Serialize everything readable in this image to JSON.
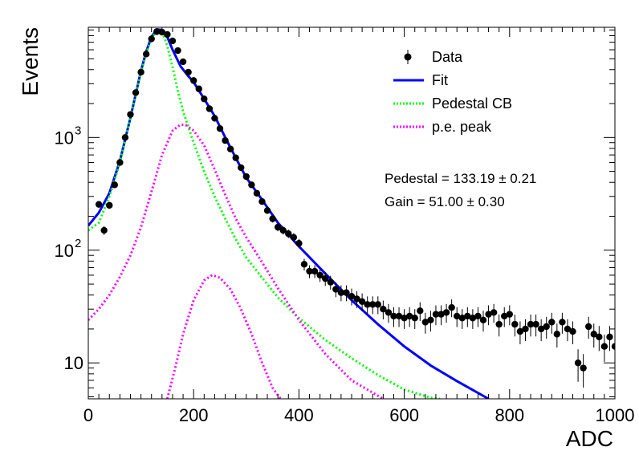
{
  "chart_data": {
    "type": "scatter",
    "xlabel": "ADC",
    "ylabel": "Events",
    "xlim": [
      0,
      1000
    ],
    "ylim": [
      4.8,
      9500
    ],
    "yscale": "log",
    "grid": false,
    "legend_position": "top-right",
    "x_ticks": [
      0,
      200,
      400,
      600,
      800,
      1000
    ],
    "x_tick_labels": [
      "0",
      "200",
      "400",
      "600",
      "800",
      "1000"
    ],
    "y_ticks": [
      10,
      100,
      1000
    ],
    "y_tick_labels": [
      "10",
      "10",
      "10"
    ],
    "y_tick_exponents": [
      "",
      "2",
      "3"
    ],
    "legend": [
      {
        "label": "Data",
        "marker": "point",
        "color": "#000000"
      },
      {
        "label": "Fit",
        "marker": "solid-line",
        "color": "#0000ff"
      },
      {
        "label": "Pedestal CB",
        "marker": "dotted-line",
        "color": "#00ff00"
      },
      {
        "label": "p.e. peak",
        "marker": "dotted-line",
        "color": "#ff00ff"
      }
    ],
    "annotations": [
      "Pedestal = 133.19 ± 0.21",
      "Gain = 51.00 ± 0.30"
    ],
    "series": [
      {
        "name": "Data",
        "style": "points-with-errors",
        "color": "#000000",
        "x": [
          20,
          30,
          40,
          50,
          60,
          70,
          80,
          90,
          100,
          110,
          120,
          130,
          140,
          150,
          160,
          170,
          180,
          190,
          200,
          210,
          220,
          230,
          240,
          250,
          260,
          270,
          280,
          290,
          300,
          310,
          320,
          330,
          340,
          350,
          360,
          370,
          380,
          390,
          400,
          410,
          420,
          430,
          440,
          450,
          460,
          470,
          480,
          490,
          500,
          510,
          520,
          530,
          540,
          550,
          560,
          570,
          580,
          590,
          600,
          610,
          620,
          630,
          640,
          650,
          660,
          670,
          680,
          690,
          700,
          710,
          720,
          730,
          740,
          750,
          760,
          770,
          780,
          790,
          800,
          810,
          820,
          830,
          840,
          850,
          860,
          870,
          880,
          890,
          900,
          910,
          920,
          930,
          940,
          950,
          960,
          970,
          980,
          990,
          1000
        ],
        "y": [
          255,
          150,
          250,
          380,
          600,
          1000,
          1600,
          2500,
          3800,
          5500,
          7500,
          8700,
          8600,
          8200,
          7200,
          5900,
          4700,
          3800,
          3200,
          2700,
          2200,
          1800,
          1480,
          1200,
          940,
          790,
          660,
          540,
          450,
          380,
          320,
          270,
          225,
          190,
          160,
          150,
          140,
          130,
          115,
          75,
          65,
          65,
          60,
          56,
          52,
          45,
          42,
          42,
          39,
          37,
          35,
          33,
          33,
          33,
          30,
          28,
          26,
          26,
          25,
          26,
          25,
          29,
          23,
          24,
          27,
          27,
          28,
          31,
          26,
          25,
          26,
          25,
          26,
          24,
          27,
          28,
          22,
          26,
          27,
          22,
          19,
          20,
          22,
          22,
          20,
          21,
          23,
          18,
          23,
          20,
          19,
          10,
          9,
          21,
          18,
          17,
          14,
          17,
          14
        ],
        "y_err_frac": [
          0.07,
          0.09,
          0.07,
          0.055,
          0.045,
          0.035,
          0.028,
          0.022,
          0.018,
          0.015,
          0.013,
          0.012,
          0.012,
          0.012,
          0.013,
          0.014,
          0.016,
          0.018,
          0.019,
          0.021,
          0.023,
          0.025,
          0.027,
          0.03,
          0.033,
          0.036,
          0.039,
          0.044,
          0.048,
          0.052,
          0.057,
          0.062,
          0.068,
          0.074,
          0.08,
          0.083,
          0.086,
          0.09,
          0.095,
          0.12,
          0.13,
          0.13,
          0.13,
          0.14,
          0.14,
          0.15,
          0.16,
          0.16,
          0.17,
          0.17,
          0.18,
          0.18,
          0.18,
          0.18,
          0.19,
          0.19,
          0.2,
          0.2,
          0.2,
          0.2,
          0.2,
          0.19,
          0.21,
          0.21,
          0.2,
          0.2,
          0.19,
          0.18,
          0.2,
          0.2,
          0.2,
          0.2,
          0.2,
          0.21,
          0.2,
          0.19,
          0.22,
          0.2,
          0.2,
          0.22,
          0.23,
          0.22,
          0.22,
          0.22,
          0.22,
          0.22,
          0.21,
          0.24,
          0.21,
          0.22,
          0.23,
          0.32,
          0.33,
          0.22,
          0.24,
          0.25,
          0.27,
          0.25,
          0.27
        ]
      },
      {
        "name": "Fit",
        "style": "solid",
        "color": "#0000ff",
        "x": [
          0,
          20,
          40,
          60,
          80,
          100,
          110,
          120,
          130,
          140,
          150,
          160,
          175,
          190,
          200,
          220,
          240,
          260,
          280,
          300,
          330,
          360,
          400,
          450,
          500,
          550,
          600,
          650,
          700,
          760
        ],
        "y": [
          165,
          215,
          320,
          620,
          1500,
          3900,
          5800,
          7800,
          9100,
          9000,
          7800,
          6000,
          4300,
          3500,
          3100,
          2200,
          1550,
          1000,
          660,
          440,
          280,
          175,
          108,
          62,
          36,
          22,
          14,
          9.5,
          6.9,
          4.8
        ]
      },
      {
        "name": "Pedestal CB",
        "style": "dotted",
        "color": "#00ff00",
        "x": [
          0,
          20,
          40,
          60,
          80,
          100,
          110,
          120,
          130,
          140,
          150,
          160,
          170,
          180,
          200,
          220,
          240,
          260,
          280,
          300,
          330,
          360,
          400,
          450,
          500,
          550,
          600,
          650,
          668
        ],
        "y": [
          150,
          175,
          300,
          600,
          1500,
          3800,
          5600,
          7500,
          8900,
          8800,
          6500,
          4200,
          2600,
          1700,
          900,
          500,
          300,
          190,
          125,
          86,
          57,
          38,
          25,
          16,
          11,
          7.8,
          5.8,
          4.9,
          4.8
        ]
      },
      {
        "name": "p.e. peak",
        "style": "dotted",
        "color": "#ff00ff",
        "x": [
          0,
          20,
          40,
          60,
          80,
          100,
          120,
          140,
          160,
          175,
          185,
          200,
          220,
          240,
          260,
          280,
          300,
          330,
          360,
          400,
          450,
          500,
          560
        ],
        "y": [
          24,
          30,
          40,
          58,
          90,
          160,
          330,
          700,
          1150,
          1300,
          1290,
          1150,
          850,
          520,
          310,
          190,
          130,
          78,
          46,
          24,
          12,
          7,
          4.8
        ]
      },
      {
        "name": "p.e. peak (2nd)",
        "style": "dotted",
        "color": "#ff00ff",
        "x": [
          150,
          165,
          180,
          200,
          220,
          235,
          250,
          270,
          290,
          310,
          330,
          350,
          365
        ],
        "y": [
          4.8,
          9,
          18,
          36,
          54,
          60,
          57,
          45,
          30,
          18,
          10,
          6,
          4.8
        ]
      }
    ]
  }
}
